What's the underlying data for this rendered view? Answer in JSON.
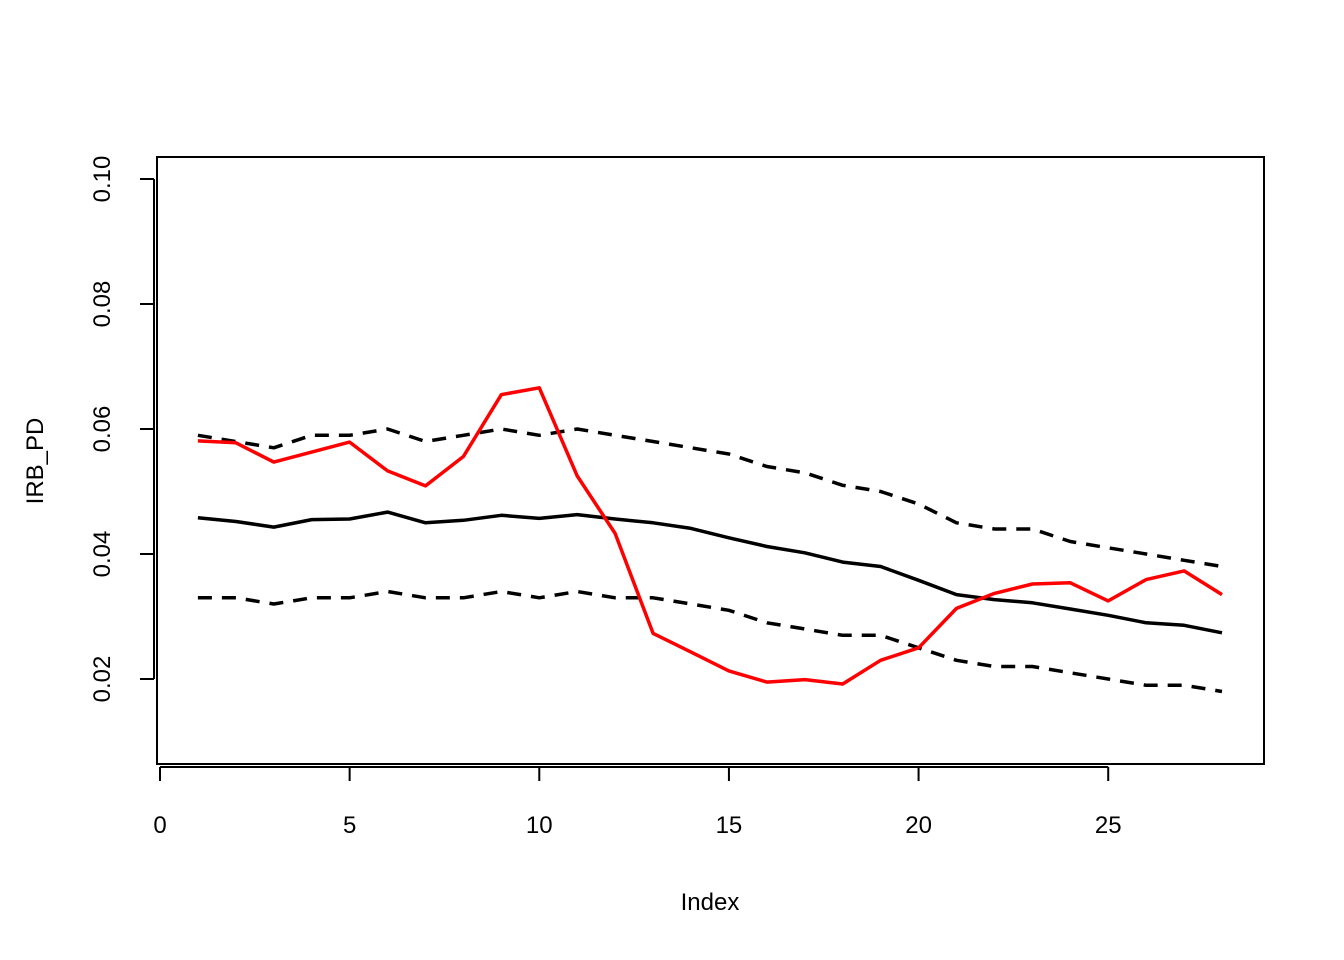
{
  "chart_data": {
    "type": "line",
    "xlabel": "Index",
    "ylabel": "IRB_PD",
    "xlim": [
      0,
      29
    ],
    "ylim": [
      0.005,
      0.105
    ],
    "x_ticks": [
      0,
      5,
      10,
      15,
      20,
      25
    ],
    "y_ticks": [
      0.02,
      0.04,
      0.06,
      0.08,
      0.1
    ],
    "x_tick_labels": [
      "0",
      "5",
      "10",
      "15",
      "20",
      "25"
    ],
    "y_tick_labels": [
      "0.02",
      "0.04",
      "0.06",
      "0.08",
      "0.10"
    ],
    "grid": false,
    "legend": "none",
    "x": [
      1,
      2,
      3,
      4,
      5,
      6,
      7,
      8,
      9,
      10,
      11,
      12,
      13,
      14,
      15,
      16,
      17,
      18,
      19,
      20,
      21,
      22,
      23,
      24,
      25,
      26,
      27,
      28
    ],
    "series": [
      {
        "style": "solid",
        "color": "#000000",
        "values": [
          0.0458,
          0.0452,
          0.0443,
          0.0455,
          0.0456,
          0.0467,
          0.045,
          0.0454,
          0.0462,
          0.0457,
          0.0463,
          0.0456,
          0.045,
          0.0441,
          0.0426,
          0.0412,
          0.0402,
          0.0387,
          0.038,
          0.0358,
          0.0335,
          0.0327,
          0.0322,
          0.0312,
          0.0302,
          0.029,
          0.0286,
          0.0274
        ]
      },
      {
        "style": "dashed",
        "color": "#000000",
        "values": [
          0.059,
          0.058,
          0.057,
          0.059,
          0.059,
          0.06,
          0.058,
          0.059,
          0.06,
          0.059,
          0.06,
          0.059,
          0.058,
          0.057,
          0.056,
          0.054,
          0.053,
          0.051,
          0.05,
          0.048,
          0.045,
          0.044,
          0.044,
          0.042,
          0.041,
          0.04,
          0.039,
          0.038
        ]
      },
      {
        "style": "dashed",
        "color": "#000000",
        "values": [
          0.033,
          0.033,
          0.032,
          0.033,
          0.033,
          0.034,
          0.033,
          0.033,
          0.034,
          0.033,
          0.034,
          0.033,
          0.033,
          0.032,
          0.031,
          0.029,
          0.028,
          0.027,
          0.027,
          0.025,
          0.023,
          0.022,
          0.022,
          0.021,
          0.02,
          0.019,
          0.019,
          0.018
        ]
      },
      {
        "style": "solid",
        "color": "#ff0000",
        "values": [
          0.0581,
          0.0578,
          0.0547,
          0.0563,
          0.0579,
          0.0533,
          0.0509,
          0.0556,
          0.0655,
          0.0666,
          0.0525,
          0.0433,
          0.0273,
          0.0243,
          0.0213,
          0.0195,
          0.0199,
          0.0192,
          0.023,
          0.025,
          0.0313,
          0.0337,
          0.0352,
          0.0354,
          0.0325,
          0.0359,
          0.0373,
          0.0335
        ]
      }
    ]
  }
}
